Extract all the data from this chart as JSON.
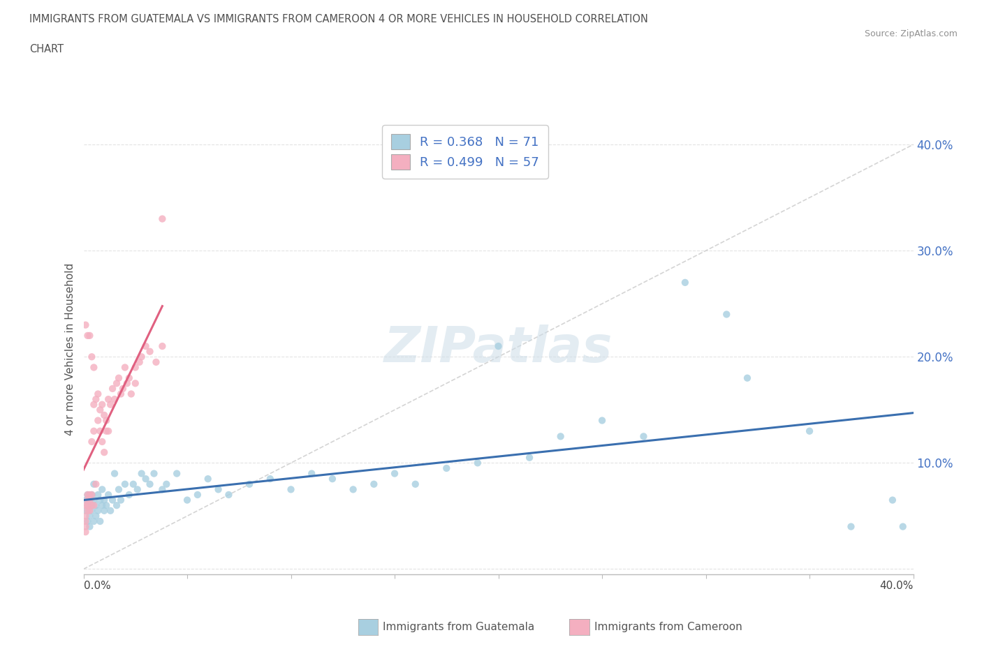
{
  "title_line1": "IMMIGRANTS FROM GUATEMALA VS IMMIGRANTS FROM CAMEROON 4 OR MORE VEHICLES IN HOUSEHOLD CORRELATION",
  "title_line2": "CHART",
  "source": "Source: ZipAtlas.com",
  "ylabel": "4 or more Vehicles in Household",
  "xlim": [
    0.0,
    0.4
  ],
  "ylim": [
    -0.005,
    0.42
  ],
  "watermark": "ZIPatlas",
  "guatemala_color": "#a8cfe0",
  "cameroon_color": "#f4afc0",
  "guatemala_trendline_color": "#3a6faf",
  "cameroon_trendline_color": "#e06080",
  "diag_color": "#d0d0d0",
  "legend_blue_text": "#4472c4",
  "grid_color": "#e0e0e0",
  "title_color": "#505050",
  "source_color": "#909090",
  "ytick_color": "#4472c4",
  "guatemala_points": [
    [
      0.001,
      0.065
    ],
    [
      0.001,
      0.055
    ],
    [
      0.002,
      0.07
    ],
    [
      0.002,
      0.045
    ],
    [
      0.002,
      0.06
    ],
    [
      0.003,
      0.065
    ],
    [
      0.003,
      0.05
    ],
    [
      0.003,
      0.04
    ],
    [
      0.004,
      0.06
    ],
    [
      0.004,
      0.07
    ],
    [
      0.004,
      0.055
    ],
    [
      0.005,
      0.065
    ],
    [
      0.005,
      0.045
    ],
    [
      0.005,
      0.08
    ],
    [
      0.006,
      0.06
    ],
    [
      0.006,
      0.05
    ],
    [
      0.007,
      0.055
    ],
    [
      0.007,
      0.07
    ],
    [
      0.008,
      0.065
    ],
    [
      0.008,
      0.045
    ],
    [
      0.009,
      0.06
    ],
    [
      0.009,
      0.075
    ],
    [
      0.01,
      0.065
    ],
    [
      0.01,
      0.055
    ],
    [
      0.011,
      0.06
    ],
    [
      0.012,
      0.07
    ],
    [
      0.013,
      0.055
    ],
    [
      0.014,
      0.065
    ],
    [
      0.015,
      0.09
    ],
    [
      0.016,
      0.06
    ],
    [
      0.017,
      0.075
    ],
    [
      0.018,
      0.065
    ],
    [
      0.02,
      0.08
    ],
    [
      0.022,
      0.07
    ],
    [
      0.024,
      0.08
    ],
    [
      0.026,
      0.075
    ],
    [
      0.028,
      0.09
    ],
    [
      0.03,
      0.085
    ],
    [
      0.032,
      0.08
    ],
    [
      0.034,
      0.09
    ],
    [
      0.038,
      0.075
    ],
    [
      0.04,
      0.08
    ],
    [
      0.045,
      0.09
    ],
    [
      0.05,
      0.065
    ],
    [
      0.055,
      0.07
    ],
    [
      0.06,
      0.085
    ],
    [
      0.065,
      0.075
    ],
    [
      0.07,
      0.07
    ],
    [
      0.08,
      0.08
    ],
    [
      0.09,
      0.085
    ],
    [
      0.1,
      0.075
    ],
    [
      0.11,
      0.09
    ],
    [
      0.12,
      0.085
    ],
    [
      0.13,
      0.075
    ],
    [
      0.14,
      0.08
    ],
    [
      0.15,
      0.09
    ],
    [
      0.16,
      0.08
    ],
    [
      0.175,
      0.095
    ],
    [
      0.19,
      0.1
    ],
    [
      0.2,
      0.21
    ],
    [
      0.215,
      0.105
    ],
    [
      0.23,
      0.125
    ],
    [
      0.25,
      0.14
    ],
    [
      0.27,
      0.125
    ],
    [
      0.29,
      0.27
    ],
    [
      0.31,
      0.24
    ],
    [
      0.32,
      0.18
    ],
    [
      0.35,
      0.13
    ],
    [
      0.37,
      0.04
    ],
    [
      0.39,
      0.065
    ],
    [
      0.395,
      0.04
    ]
  ],
  "cameroon_points": [
    [
      0.001,
      0.06
    ],
    [
      0.001,
      0.05
    ],
    [
      0.001,
      0.04
    ],
    [
      0.001,
      0.045
    ],
    [
      0.002,
      0.065
    ],
    [
      0.002,
      0.055
    ],
    [
      0.002,
      0.07
    ],
    [
      0.002,
      0.06
    ],
    [
      0.003,
      0.07
    ],
    [
      0.003,
      0.055
    ],
    [
      0.003,
      0.065
    ],
    [
      0.004,
      0.06
    ],
    [
      0.004,
      0.12
    ],
    [
      0.004,
      0.07
    ],
    [
      0.005,
      0.155
    ],
    [
      0.005,
      0.13
    ],
    [
      0.005,
      0.06
    ],
    [
      0.006,
      0.16
    ],
    [
      0.006,
      0.08
    ],
    [
      0.007,
      0.165
    ],
    [
      0.007,
      0.14
    ],
    [
      0.008,
      0.15
    ],
    [
      0.008,
      0.13
    ],
    [
      0.009,
      0.155
    ],
    [
      0.009,
      0.12
    ],
    [
      0.01,
      0.145
    ],
    [
      0.01,
      0.11
    ],
    [
      0.011,
      0.14
    ],
    [
      0.011,
      0.13
    ],
    [
      0.012,
      0.16
    ],
    [
      0.012,
      0.13
    ],
    [
      0.013,
      0.155
    ],
    [
      0.014,
      0.17
    ],
    [
      0.015,
      0.16
    ],
    [
      0.016,
      0.175
    ],
    [
      0.017,
      0.18
    ],
    [
      0.018,
      0.165
    ],
    [
      0.019,
      0.17
    ],
    [
      0.02,
      0.19
    ],
    [
      0.021,
      0.175
    ],
    [
      0.022,
      0.18
    ],
    [
      0.023,
      0.165
    ],
    [
      0.025,
      0.19
    ],
    [
      0.025,
      0.175
    ],
    [
      0.027,
      0.195
    ],
    [
      0.028,
      0.2
    ],
    [
      0.03,
      0.21
    ],
    [
      0.032,
      0.205
    ],
    [
      0.035,
      0.195
    ],
    [
      0.038,
      0.21
    ],
    [
      0.003,
      0.22
    ],
    [
      0.004,
      0.2
    ],
    [
      0.005,
      0.19
    ],
    [
      0.002,
      0.22
    ],
    [
      0.001,
      0.23
    ],
    [
      0.001,
      0.035
    ],
    [
      0.038,
      0.33
    ]
  ]
}
